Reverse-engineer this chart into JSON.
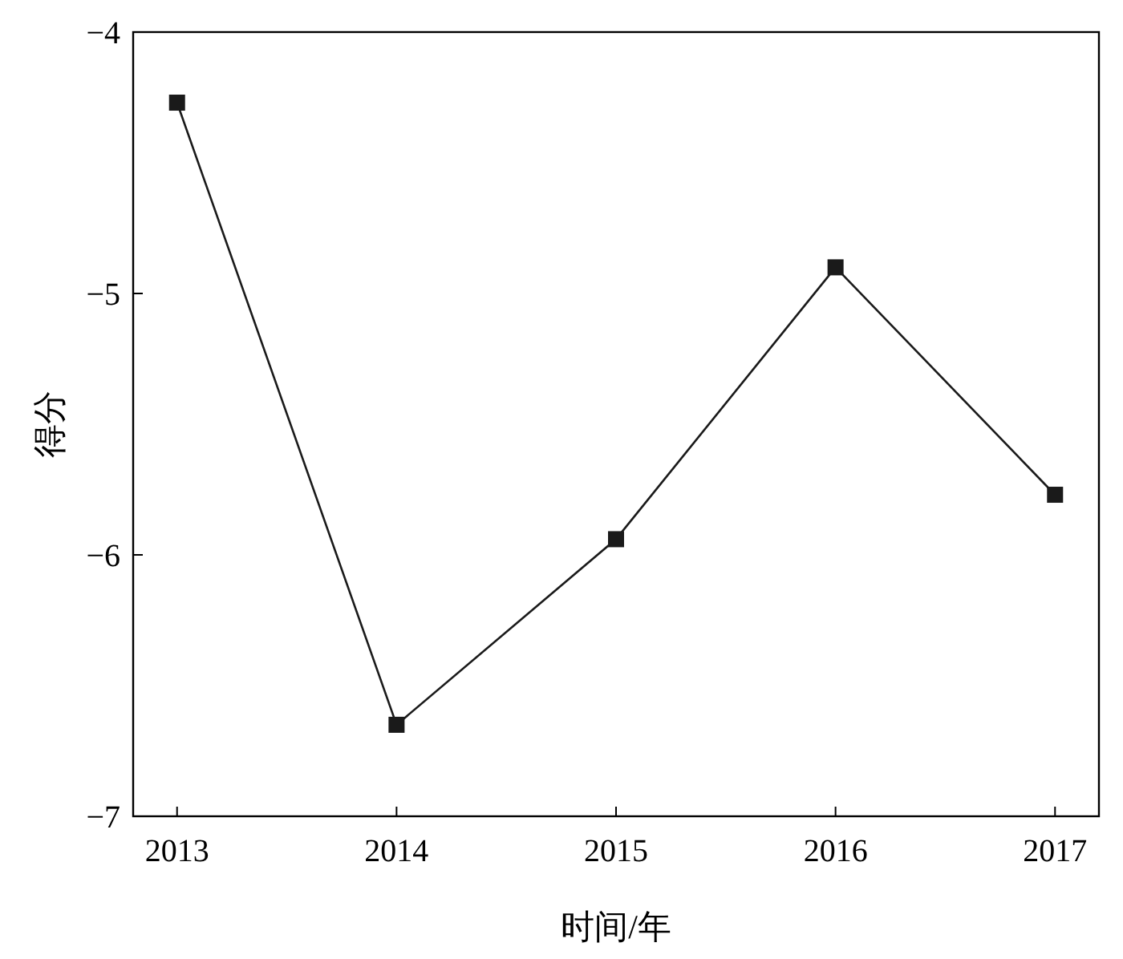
{
  "chart_data": {
    "type": "line",
    "xlabel": "时间/年",
    "ylabel": "得分",
    "x": [
      2013,
      2014,
      2015,
      2016,
      2017
    ],
    "series": [
      {
        "color": "#1a1a1a",
        "values": [
          -4.27,
          -6.65,
          -5.94,
          -4.9,
          -5.77
        ]
      }
    ],
    "xlim": [
      2012.8,
      2017.2
    ],
    "ylim": [
      -7,
      -4
    ],
    "xticks": [
      2013,
      2014,
      2015,
      2016,
      2017
    ],
    "yticks": [
      -7,
      -6,
      -5,
      -4
    ],
    "marker": "square",
    "line_style": "solid",
    "grid": false
  }
}
